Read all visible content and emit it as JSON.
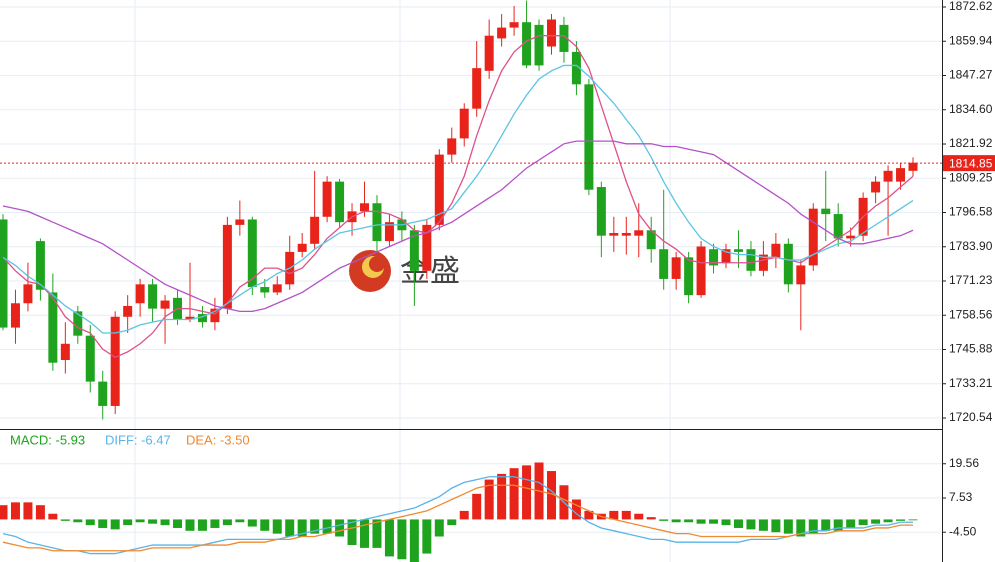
{
  "chart_data": [
    {
      "type": "candlestick",
      "watermark": "金盛",
      "up_color": "#e8231a",
      "down_color": "#1fa31f",
      "open": [
        1794,
        1754,
        1763,
        1786,
        1767,
        1742,
        1760,
        1751,
        1734,
        1725,
        1758,
        1763,
        1770,
        1761,
        1765,
        1757,
        1759,
        1756,
        1761,
        1792,
        1794,
        1769,
        1767,
        1770,
        1782,
        1785,
        1795,
        1808,
        1793,
        1797,
        1800,
        1786,
        1794,
        1790,
        1775,
        1792,
        1818,
        1824,
        1835,
        1849,
        1861,
        1865,
        1867,
        1866,
        1858,
        1866,
        1856,
        1844,
        1806,
        1788,
        1788,
        1788,
        1790,
        1783,
        1772,
        1780,
        1766,
        1783,
        1778,
        1783,
        1783,
        1775,
        1780,
        1785,
        1770,
        1777,
        1798,
        1796,
        1787,
        1788,
        1804,
        1808,
        1808,
        1812
      ],
      "close": [
        1754,
        1763,
        1770,
        1768,
        1741,
        1748,
        1751,
        1734,
        1725,
        1758,
        1762,
        1770,
        1761,
        1764,
        1757,
        1758,
        1756,
        1761,
        1792,
        1794,
        1769,
        1767,
        1770,
        1782,
        1785,
        1795,
        1808,
        1793,
        1797,
        1800,
        1786,
        1793,
        1790,
        1775,
        1792,
        1818,
        1824,
        1835,
        1850,
        1862,
        1865,
        1867,
        1851,
        1851,
        1868,
        1856,
        1844,
        1805,
        1788,
        1789,
        1789,
        1790,
        1783,
        1772,
        1780,
        1766,
        1784,
        1777,
        1783,
        1782,
        1775,
        1781,
        1785,
        1770,
        1777,
        1798,
        1796,
        1787,
        1788,
        1802,
        1808,
        1812,
        1813,
        1815
      ],
      "high": [
        1796,
        1768,
        1778,
        1787,
        1774,
        1756,
        1762,
        1755,
        1738,
        1760,
        1766,
        1772,
        1772,
        1766,
        1768,
        1778,
        1762,
        1765,
        1795,
        1801,
        1795,
        1772,
        1773,
        1788,
        1789,
        1812,
        1810,
        1809,
        1800,
        1808,
        1803,
        1796,
        1797,
        1792,
        1794,
        1820,
        1828,
        1837,
        1860,
        1868,
        1870,
        1873,
        1875,
        1868,
        1870,
        1869,
        1860,
        1846,
        1808,
        1795,
        1795,
        1800,
        1795,
        1805,
        1782,
        1782,
        1786,
        1785,
        1785,
        1790,
        1786,
        1786,
        1789,
        1787,
        1779,
        1800,
        1812,
        1800,
        1791,
        1804,
        1810,
        1814,
        1815,
        1817
      ],
      "low": [
        1753,
        1748,
        1760,
        1764,
        1738,
        1737,
        1748,
        1730,
        1720,
        1722,
        1752,
        1758,
        1756,
        1748,
        1755,
        1756,
        1754,
        1753,
        1759,
        1788,
        1766,
        1765,
        1766,
        1768,
        1780,
        1783,
        1793,
        1791,
        1788,
        1795,
        1782,
        1784,
        1786,
        1762,
        1772,
        1790,
        1815,
        1821,
        1832,
        1846,
        1858,
        1862,
        1850,
        1849,
        1855,
        1852,
        1840,
        1803,
        1780,
        1782,
        1781,
        1780,
        1778,
        1768,
        1768,
        1763,
        1765,
        1774,
        1776,
        1776,
        1773,
        1773,
        1776,
        1767,
        1753,
        1775,
        1786,
        1784,
        1784,
        1786,
        1800,
        1788,
        1805,
        1810
      ],
      "lines": [
        {
          "color": "#e0508a",
          "values": [
            1780,
            1775,
            1771,
            1770,
            1765,
            1758,
            1754,
            1752,
            1746,
            1743,
            1745,
            1748,
            1752,
            1758,
            1761,
            1761,
            1760,
            1759,
            1763,
            1769,
            1772,
            1776,
            1776,
            1774,
            1776,
            1781,
            1787,
            1791,
            1795,
            1797,
            1797,
            1796,
            1794,
            1790,
            1789,
            1793,
            1800,
            1810,
            1825,
            1838,
            1849,
            1856,
            1860,
            1862,
            1862,
            1862,
            1858,
            1850,
            1836,
            1822,
            1808,
            1796,
            1790,
            1786,
            1783,
            1779,
            1778,
            1778,
            1778,
            1778,
            1778,
            1779,
            1780,
            1779,
            1778,
            1781,
            1784,
            1787,
            1790,
            1795,
            1799,
            1802,
            1806,
            1810
          ]
        },
        {
          "color": "#5cc4e4",
          "values": [
            1780,
            1777,
            1773,
            1770,
            1766,
            1762,
            1759,
            1756,
            1752,
            1752,
            1753,
            1755,
            1756,
            1757,
            1757,
            1757,
            1758,
            1760,
            1763,
            1766,
            1769,
            1771,
            1774,
            1776,
            1779,
            1783,
            1786,
            1789,
            1790,
            1791,
            1792,
            1792,
            1792,
            1793,
            1794,
            1796,
            1798,
            1804,
            1810,
            1817,
            1825,
            1833,
            1840,
            1846,
            1849,
            1851,
            1851,
            1847,
            1842,
            1837,
            1831,
            1825,
            1817,
            1808,
            1800,
            1793,
            1787,
            1784,
            1782,
            1781,
            1781,
            1780,
            1780,
            1779,
            1779,
            1781,
            1783,
            1785,
            1786,
            1789,
            1792,
            1795,
            1798,
            1801
          ]
        },
        {
          "color": "#b452c8",
          "values": [
            1799,
            1798,
            1797,
            1795,
            1793,
            1791,
            1789,
            1787,
            1785,
            1782,
            1779,
            1776,
            1773,
            1770,
            1768,
            1766,
            1764,
            1762,
            1761,
            1760,
            1760,
            1761,
            1763,
            1765,
            1767,
            1770,
            1773,
            1776,
            1778,
            1780,
            1782,
            1784,
            1786,
            1788,
            1789,
            1791,
            1793,
            1796,
            1799,
            1802,
            1805,
            1809,
            1813,
            1816,
            1819,
            1822,
            1823,
            1823,
            1823,
            1823,
            1822,
            1822,
            1822,
            1821,
            1821,
            1820,
            1819,
            1818,
            1815,
            1812,
            1809,
            1806,
            1803,
            1800,
            1796,
            1793,
            1790,
            1787,
            1785,
            1785,
            1786,
            1787,
            1788,
            1790
          ]
        }
      ],
      "last_price": 1814.85,
      "last_price_color": "#e8231a",
      "ylim": [
        1716.84,
        1875.21
      ],
      "yticks": [
        1720.54,
        1733.21,
        1745.88,
        1758.56,
        1771.23,
        {
          "value": 1783.9,
          "label": "1783.90"
        },
        1796.58,
        1809.25,
        1821.92,
        {
          "value": 1834.6,
          "label": "1834.60"
        },
        1847.27,
        1859.94,
        1872.62
      ],
      "grid": true
    },
    {
      "type": "macd",
      "series": [
        {
          "name": "MACD: -5.93",
          "color": "#1fa31f",
          "up_color": "#e8231a",
          "values": [
            5,
            6,
            6,
            5,
            2,
            -0.5,
            -1,
            -2,
            -3,
            -3.5,
            -2,
            -1,
            -1.5,
            -2,
            -3,
            -4,
            -4,
            -3,
            -2,
            -1,
            -2.5,
            -4,
            -5,
            -6,
            -6,
            -5,
            -5,
            -6,
            -9,
            -10,
            -10,
            -13,
            -14,
            -15,
            -12,
            -6,
            -2,
            3,
            9,
            14,
            16,
            18,
            19,
            20,
            17,
            12,
            7,
            3,
            2,
            3,
            3,
            2,
            0.8,
            -0.5,
            -1,
            -1,
            -1.5,
            -1.5,
            -2,
            -3,
            -3.5,
            -4,
            -4.5,
            -5,
            -6,
            -5,
            -4,
            -4,
            -3,
            -2,
            -1.5,
            -1,
            -0.5,
            -0.3
          ]
        },
        {
          "name": "DIFF: -6.47",
          "color": "#5ab4e6",
          "values": [
            -5,
            -6,
            -8,
            -9,
            -10,
            -11,
            -11,
            -12,
            -12,
            -12,
            -11,
            -10,
            -9,
            -9,
            -9,
            -9,
            -9,
            -8,
            -7,
            -7,
            -7,
            -7,
            -7,
            -6,
            -5,
            -4,
            -3,
            -2,
            -1,
            0,
            1,
            2,
            3,
            4,
            6,
            8,
            11,
            13,
            14,
            15,
            15,
            15,
            14,
            13,
            10,
            6,
            2,
            -1,
            -3,
            -4,
            -5,
            -6,
            -7,
            -7,
            -8,
            -8,
            -8,
            -8,
            -8,
            -8,
            -7,
            -7,
            -7,
            -6,
            -5,
            -4,
            -4,
            -3,
            -3,
            -3,
            -2,
            -2,
            -1,
            -1
          ]
        },
        {
          "name": "DEA: -3.50",
          "color": "#f08a30",
          "values": [
            -8,
            -9,
            -10,
            -10,
            -11,
            -11,
            -11,
            -11,
            -11,
            -11,
            -11,
            -11,
            -10,
            -10,
            -10,
            -10,
            -9,
            -9,
            -9,
            -8,
            -8,
            -8,
            -7,
            -7,
            -6,
            -6,
            -5,
            -4,
            -3,
            -2,
            -1,
            0,
            1,
            2,
            3,
            5,
            7,
            9,
            11,
            12,
            12,
            12,
            11,
            10,
            9,
            7,
            5,
            3,
            1,
            0,
            -1,
            -2,
            -3,
            -4,
            -5,
            -5,
            -6,
            -6,
            -6,
            -6,
            -6,
            -6,
            -6,
            -6,
            -5,
            -5,
            -5,
            -4,
            -4,
            -4,
            -3,
            -3,
            -2,
            -2
          ]
        }
      ],
      "ylim": [
        -14.96,
        31.07
      ],
      "yticks": [
        19.56,
        7.53,
        {
          "value": -4.5,
          "label": "-4.50"
        }
      ],
      "grid": true
    }
  ]
}
